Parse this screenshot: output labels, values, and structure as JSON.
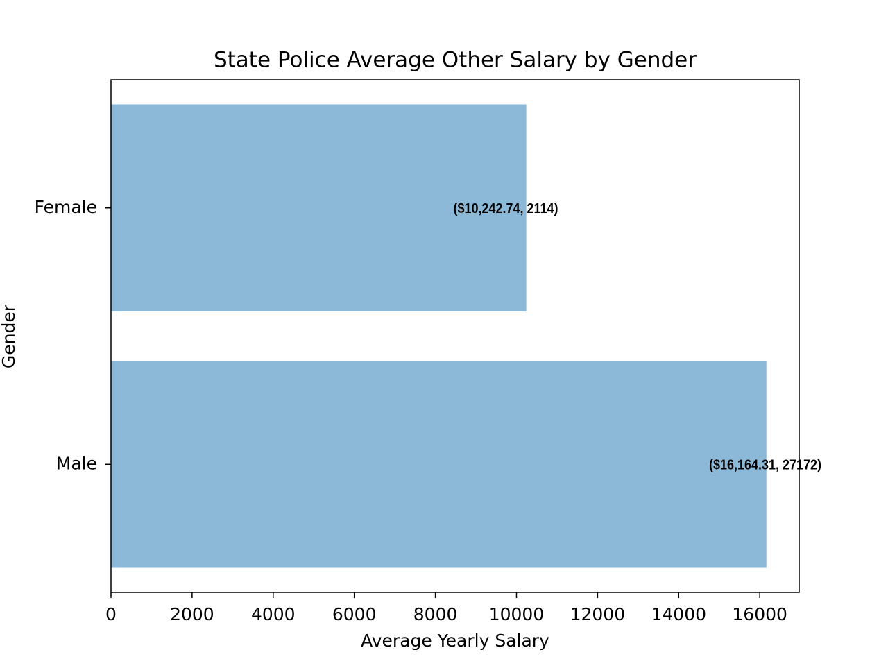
{
  "chart_data": {
    "type": "barh",
    "title": "State Police Average Other Salary by Gender",
    "x_label": "Average Yearly Salary",
    "y_label": "Gender",
    "categories": [
      "Female",
      "Male"
    ],
    "values": [
      10242.74,
      16164.31
    ],
    "value_labels": [
      "($10,242.74, 2114)",
      "($16,164.31, 27172)"
    ],
    "color": "#8db9d9",
    "xlim": [
      0,
      16972.5
    ],
    "xticks": [
      0,
      2000,
      4000,
      6000,
      8000,
      10000,
      12000,
      14000,
      16000
    ],
    "grid": false
  }
}
